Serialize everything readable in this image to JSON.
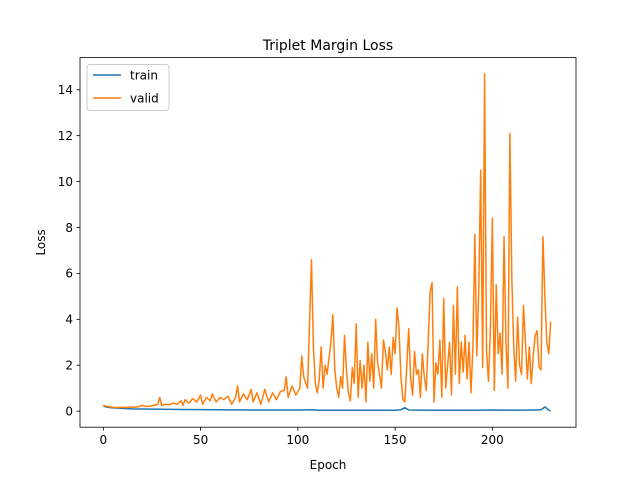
{
  "chart_data": {
    "type": "line",
    "title": "Triplet Margin Loss",
    "xlabel": "Epoch",
    "ylabel": "Loss",
    "xlim": [
      -12,
      243
    ],
    "ylim": [
      -0.7,
      15.4
    ],
    "xticks": [
      0,
      50,
      100,
      150,
      200
    ],
    "yticks": [
      0,
      2,
      4,
      6,
      8,
      10,
      12,
      14
    ],
    "grid": false,
    "legend": "top-left",
    "series": [
      {
        "name": "train",
        "color": "#1f77b4",
        "points": [
          [
            0,
            0.22
          ],
          [
            2,
            0.17
          ],
          [
            5,
            0.14
          ],
          [
            10,
            0.12
          ],
          [
            15,
            0.1
          ],
          [
            20,
            0.09
          ],
          [
            30,
            0.08
          ],
          [
            40,
            0.07
          ],
          [
            60,
            0.06
          ],
          [
            80,
            0.05
          ],
          [
            100,
            0.05
          ],
          [
            108,
            0.06
          ],
          [
            110,
            0.04
          ],
          [
            130,
            0.04
          ],
          [
            150,
            0.04
          ],
          [
            153,
            0.06
          ],
          [
            155,
            0.15
          ],
          [
            157,
            0.05
          ],
          [
            170,
            0.04
          ],
          [
            190,
            0.04
          ],
          [
            200,
            0.05
          ],
          [
            210,
            0.04
          ],
          [
            220,
            0.05
          ],
          [
            225,
            0.06
          ],
          [
            227,
            0.18
          ],
          [
            228,
            0.12
          ],
          [
            229,
            0.04
          ],
          [
            230,
            0.02
          ]
        ]
      },
      {
        "name": "valid",
        "color": "#ff7f0e",
        "points": [
          [
            0,
            0.25
          ],
          [
            2,
            0.2
          ],
          [
            4,
            0.18
          ],
          [
            6,
            0.16
          ],
          [
            8,
            0.16
          ],
          [
            10,
            0.17
          ],
          [
            12,
            0.16
          ],
          [
            14,
            0.18
          ],
          [
            16,
            0.17
          ],
          [
            18,
            0.19
          ],
          [
            20,
            0.25
          ],
          [
            22,
            0.2
          ],
          [
            24,
            0.22
          ],
          [
            26,
            0.25
          ],
          [
            28,
            0.3
          ],
          [
            29,
            0.6
          ],
          [
            30,
            0.25
          ],
          [
            32,
            0.3
          ],
          [
            34,
            0.28
          ],
          [
            36,
            0.35
          ],
          [
            38,
            0.3
          ],
          [
            40,
            0.45
          ],
          [
            41,
            0.25
          ],
          [
            42,
            0.5
          ],
          [
            44,
            0.35
          ],
          [
            46,
            0.55
          ],
          [
            48,
            0.4
          ],
          [
            50,
            0.7
          ],
          [
            51,
            0.3
          ],
          [
            53,
            0.6
          ],
          [
            55,
            0.45
          ],
          [
            56,
            0.75
          ],
          [
            58,
            0.4
          ],
          [
            60,
            0.6
          ],
          [
            62,
            0.5
          ],
          [
            64,
            0.65
          ],
          [
            66,
            0.3
          ],
          [
            68,
            0.6
          ],
          [
            69,
            1.1
          ],
          [
            70,
            0.4
          ],
          [
            72,
            0.75
          ],
          [
            74,
            0.5
          ],
          [
            76,
            0.95
          ],
          [
            77,
            0.4
          ],
          [
            79,
            0.8
          ],
          [
            81,
            0.3
          ],
          [
            83,
            0.95
          ],
          [
            85,
            0.4
          ],
          [
            87,
            0.8
          ],
          [
            89,
            0.5
          ],
          [
            91,
            0.85
          ],
          [
            93,
            0.9
          ],
          [
            94,
            1.5
          ],
          [
            95,
            0.6
          ],
          [
            97,
            1.1
          ],
          [
            99,
            0.7
          ],
          [
            101,
            1.0
          ],
          [
            102,
            2.4
          ],
          [
            103,
            1.5
          ],
          [
            105,
            1.0
          ],
          [
            107,
            6.6
          ],
          [
            108,
            2.8
          ],
          [
            109,
            1.2
          ],
          [
            110,
            0.8
          ],
          [
            111,
            1.4
          ],
          [
            112,
            2.8
          ],
          [
            113,
            1.0
          ],
          [
            114,
            2.0
          ],
          [
            115,
            1.6
          ],
          [
            116,
            2.3
          ],
          [
            117,
            3.0
          ],
          [
            118,
            4.2
          ],
          [
            119,
            1.8
          ],
          [
            120,
            1.0
          ],
          [
            121,
            0.6
          ],
          [
            122,
            1.5
          ],
          [
            123,
            1.0
          ],
          [
            124,
            3.3
          ],
          [
            125,
            1.8
          ],
          [
            126,
            0.8
          ],
          [
            127,
            0.45
          ],
          [
            128,
            1.9
          ],
          [
            129,
            1.2
          ],
          [
            130,
            3.8
          ],
          [
            131,
            0.6
          ],
          [
            132,
            2.2
          ],
          [
            133,
            1.0
          ],
          [
            134,
            2.0
          ],
          [
            135,
            0.4
          ],
          [
            136,
            3.0
          ],
          [
            137,
            1.3
          ],
          [
            138,
            2.5
          ],
          [
            139,
            1.0
          ],
          [
            140,
            4.0
          ],
          [
            141,
            2.1
          ],
          [
            142,
            1.6
          ],
          [
            143,
            1.0
          ],
          [
            144,
            3.1
          ],
          [
            145,
            2.6
          ],
          [
            146,
            1.8
          ],
          [
            147,
            2.8
          ],
          [
            148,
            1.6
          ],
          [
            149,
            3.2
          ],
          [
            150,
            2.5
          ],
          [
            151,
            4.5
          ],
          [
            152,
            3.6
          ],
          [
            153,
            1.5
          ],
          [
            154,
            0.5
          ],
          [
            155,
            0.4
          ],
          [
            156,
            2.0
          ],
          [
            157,
            3.6
          ],
          [
            158,
            1.4
          ],
          [
            159,
            0.7
          ],
          [
            160,
            2.6
          ],
          [
            161,
            1.6
          ],
          [
            162,
            1.8
          ],
          [
            163,
            0.6
          ],
          [
            164,
            2.5
          ],
          [
            165,
            1.5
          ],
          [
            166,
            0.9
          ],
          [
            167,
            3.0
          ],
          [
            168,
            5.2
          ],
          [
            169,
            5.6
          ],
          [
            170,
            0.4
          ],
          [
            171,
            2.1
          ],
          [
            172,
            1.6
          ],
          [
            173,
            3.1
          ],
          [
            174,
            0.6
          ],
          [
            175,
            4.9
          ],
          [
            176,
            1.0
          ],
          [
            177,
            2.0
          ],
          [
            178,
            3.0
          ],
          [
            179,
            0.7
          ],
          [
            180,
            4.6
          ],
          [
            181,
            1.6
          ],
          [
            182,
            5.4
          ],
          [
            183,
            1.2
          ],
          [
            184,
            3.0
          ],
          [
            185,
            1.7
          ],
          [
            186,
            3.3
          ],
          [
            187,
            1.4
          ],
          [
            188,
            3.0
          ],
          [
            189,
            0.8
          ],
          [
            190,
            2.8
          ],
          [
            191,
            7.7
          ],
          [
            192,
            2.4
          ],
          [
            193,
            5.3
          ],
          [
            194,
            10.5
          ],
          [
            195,
            1.9
          ],
          [
            196,
            14.7
          ],
          [
            197,
            2.6
          ],
          [
            198,
            1.3
          ],
          [
            199,
            3.6
          ],
          [
            200,
            8.4
          ],
          [
            201,
            0.9
          ],
          [
            202,
            5.5
          ],
          [
            203,
            2.5
          ],
          [
            204,
            3.4
          ],
          [
            205,
            1.6
          ],
          [
            206,
            7.6
          ],
          [
            207,
            3.0
          ],
          [
            208,
            1.0
          ],
          [
            209,
            12.1
          ],
          [
            210,
            5.8
          ],
          [
            211,
            2.8
          ],
          [
            212,
            1.3
          ],
          [
            213,
            4.1
          ],
          [
            214,
            2.0
          ],
          [
            215,
            1.6
          ],
          [
            216,
            4.6
          ],
          [
            217,
            3.0
          ],
          [
            218,
            1.4
          ],
          [
            219,
            2.8
          ],
          [
            220,
            1.2
          ],
          [
            221,
            2.4
          ],
          [
            222,
            3.3
          ],
          [
            223,
            3.5
          ],
          [
            224,
            1.9
          ],
          [
            225,
            1.8
          ],
          [
            226,
            7.6
          ],
          [
            227,
            5.0
          ],
          [
            228,
            3.0
          ],
          [
            229,
            2.5
          ],
          [
            230,
            3.9
          ]
        ]
      }
    ]
  }
}
